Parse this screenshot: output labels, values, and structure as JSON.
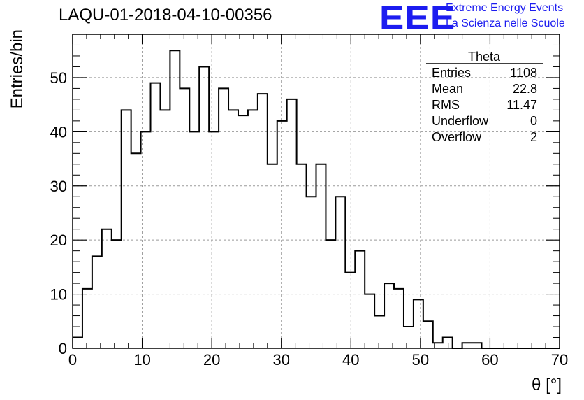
{
  "header": {
    "title": "LAQU-01-2018-04-10-00356",
    "logo_text": "EEE",
    "logo_line1": "Extreme Energy Events",
    "logo_line2": "La Scienza nelle Scuole"
  },
  "stats": {
    "name": "Theta",
    "rows": [
      {
        "label": "Entries",
        "value": "1108"
      },
      {
        "label": "Mean",
        "value": "22.8"
      },
      {
        "label": "RMS",
        "value": "11.47"
      },
      {
        "label": "Underflow",
        "value": "0"
      },
      {
        "label": "Overflow",
        "value": "2"
      }
    ]
  },
  "colors": {
    "logo": "#1c1cf0",
    "line": "#000000",
    "grid": "#9a9a9a"
  },
  "chart_data": {
    "type": "histogram",
    "title": "LAQU-01-2018-04-10-00356",
    "xlabel": "θ [°]",
    "ylabel": "Entries/bin",
    "xlim": [
      0,
      70
    ],
    "ylim": [
      0,
      58
    ],
    "bin_width": 1.4,
    "bin_start": 0,
    "x_ticks": [
      0,
      10,
      20,
      30,
      40,
      50,
      60,
      70
    ],
    "y_ticks": [
      0,
      10,
      20,
      30,
      40,
      50
    ],
    "grid": true,
    "values": [
      2,
      11,
      17,
      22,
      20,
      44,
      36,
      40,
      49,
      44,
      55,
      48,
      40,
      52,
      40,
      48,
      44,
      43,
      44,
      47,
      34,
      42,
      46,
      34,
      28,
      34,
      20,
      28,
      14,
      18,
      10,
      6,
      12,
      11,
      4,
      9,
      5,
      1,
      2,
      0,
      1,
      1,
      0,
      0,
      0,
      0,
      0,
      0,
      0,
      0
    ]
  }
}
